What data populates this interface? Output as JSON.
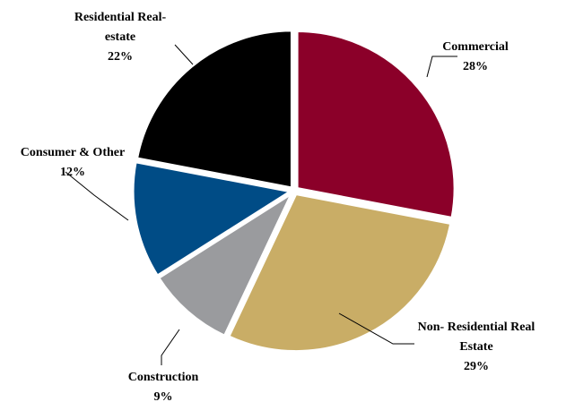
{
  "chart_data": {
    "type": "pie",
    "title": "",
    "slices": [
      {
        "label_lines": [
          "Commercial"
        ],
        "pct_label": "28%",
        "value": 28,
        "color": "#8b0029"
      },
      {
        "label_lines": [
          "Non- Residential Real",
          "Estate"
        ],
        "pct_label": "29%",
        "value": 29,
        "color": "#c9ad66"
      },
      {
        "label_lines": [
          "Construction"
        ],
        "pct_label": "9%",
        "value": 9,
        "color": "#9a9b9e"
      },
      {
        "label_lines": [
          "Consumer & Other"
        ],
        "pct_label": "12%",
        "value": 12,
        "color": "#004c86"
      },
      {
        "label_lines": [
          "Residential Real-",
          "estate"
        ],
        "pct_label": "22%",
        "value": 22,
        "color": "#000000"
      }
    ],
    "start_angle": "12 o'clock",
    "direction": "clockwise",
    "exploded": true,
    "legend": "none"
  }
}
